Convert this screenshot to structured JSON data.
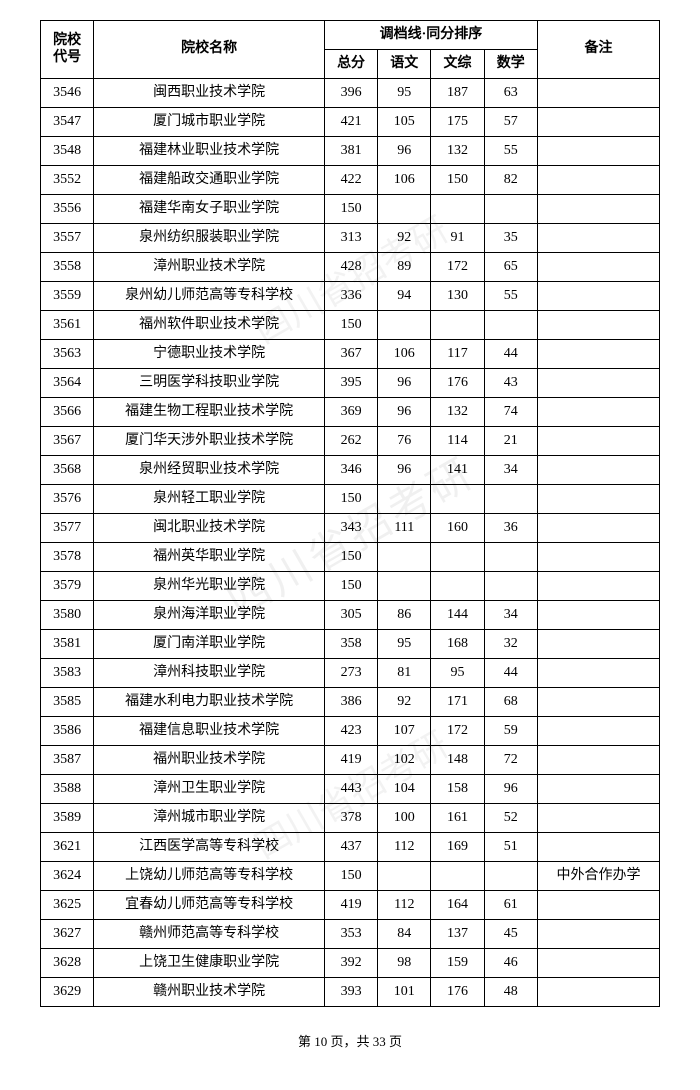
{
  "header": {
    "col_code": "院校\n代号",
    "col_name": "院校名称",
    "col_group": "调档线·同分排序",
    "col_total": "总分",
    "col_chinese": "语文",
    "col_liberal": "文综",
    "col_math": "数学",
    "col_remark": "备注"
  },
  "rows": [
    {
      "code": "3546",
      "name": "闽西职业技术学院",
      "total": "396",
      "chinese": "95",
      "liberal": "187",
      "math": "63",
      "remark": ""
    },
    {
      "code": "3547",
      "name": "厦门城市职业学院",
      "total": "421",
      "chinese": "105",
      "liberal": "175",
      "math": "57",
      "remark": ""
    },
    {
      "code": "3548",
      "name": "福建林业职业技术学院",
      "total": "381",
      "chinese": "96",
      "liberal": "132",
      "math": "55",
      "remark": ""
    },
    {
      "code": "3552",
      "name": "福建船政交通职业学院",
      "total": "422",
      "chinese": "106",
      "liberal": "150",
      "math": "82",
      "remark": ""
    },
    {
      "code": "3556",
      "name": "福建华南女子职业学院",
      "total": "150",
      "chinese": "",
      "liberal": "",
      "math": "",
      "remark": ""
    },
    {
      "code": "3557",
      "name": "泉州纺织服装职业学院",
      "total": "313",
      "chinese": "92",
      "liberal": "91",
      "math": "35",
      "remark": ""
    },
    {
      "code": "3558",
      "name": "漳州职业技术学院",
      "total": "428",
      "chinese": "89",
      "liberal": "172",
      "math": "65",
      "remark": ""
    },
    {
      "code": "3559",
      "name": "泉州幼儿师范高等专科学校",
      "total": "336",
      "chinese": "94",
      "liberal": "130",
      "math": "55",
      "remark": ""
    },
    {
      "code": "3561",
      "name": "福州软件职业技术学院",
      "total": "150",
      "chinese": "",
      "liberal": "",
      "math": "",
      "remark": ""
    },
    {
      "code": "3563",
      "name": "宁德职业技术学院",
      "total": "367",
      "chinese": "106",
      "liberal": "117",
      "math": "44",
      "remark": ""
    },
    {
      "code": "3564",
      "name": "三明医学科技职业学院",
      "total": "395",
      "chinese": "96",
      "liberal": "176",
      "math": "43",
      "remark": ""
    },
    {
      "code": "3566",
      "name": "福建生物工程职业技术学院",
      "total": "369",
      "chinese": "96",
      "liberal": "132",
      "math": "74",
      "remark": ""
    },
    {
      "code": "3567",
      "name": "厦门华天涉外职业技术学院",
      "total": "262",
      "chinese": "76",
      "liberal": "114",
      "math": "21",
      "remark": ""
    },
    {
      "code": "3568",
      "name": "泉州经贸职业技术学院",
      "total": "346",
      "chinese": "96",
      "liberal": "141",
      "math": "34",
      "remark": ""
    },
    {
      "code": "3576",
      "name": "泉州轻工职业学院",
      "total": "150",
      "chinese": "",
      "liberal": "",
      "math": "",
      "remark": ""
    },
    {
      "code": "3577",
      "name": "闽北职业技术学院",
      "total": "343",
      "chinese": "111",
      "liberal": "160",
      "math": "36",
      "remark": ""
    },
    {
      "code": "3578",
      "name": "福州英华职业学院",
      "total": "150",
      "chinese": "",
      "liberal": "",
      "math": "",
      "remark": ""
    },
    {
      "code": "3579",
      "name": "泉州华光职业学院",
      "total": "150",
      "chinese": "",
      "liberal": "",
      "math": "",
      "remark": ""
    },
    {
      "code": "3580",
      "name": "泉州海洋职业学院",
      "total": "305",
      "chinese": "86",
      "liberal": "144",
      "math": "34",
      "remark": ""
    },
    {
      "code": "3581",
      "name": "厦门南洋职业学院",
      "total": "358",
      "chinese": "95",
      "liberal": "168",
      "math": "32",
      "remark": ""
    },
    {
      "code": "3583",
      "name": "漳州科技职业学院",
      "total": "273",
      "chinese": "81",
      "liberal": "95",
      "math": "44",
      "remark": ""
    },
    {
      "code": "3585",
      "name": "福建水利电力职业技术学院",
      "total": "386",
      "chinese": "92",
      "liberal": "171",
      "math": "68",
      "remark": ""
    },
    {
      "code": "3586",
      "name": "福建信息职业技术学院",
      "total": "423",
      "chinese": "107",
      "liberal": "172",
      "math": "59",
      "remark": ""
    },
    {
      "code": "3587",
      "name": "福州职业技术学院",
      "total": "419",
      "chinese": "102",
      "liberal": "148",
      "math": "72",
      "remark": ""
    },
    {
      "code": "3588",
      "name": "漳州卫生职业学院",
      "total": "443",
      "chinese": "104",
      "liberal": "158",
      "math": "96",
      "remark": ""
    },
    {
      "code": "3589",
      "name": "漳州城市职业学院",
      "total": "378",
      "chinese": "100",
      "liberal": "161",
      "math": "52",
      "remark": ""
    },
    {
      "code": "3621",
      "name": "江西医学高等专科学校",
      "total": "437",
      "chinese": "112",
      "liberal": "169",
      "math": "51",
      "remark": ""
    },
    {
      "code": "3624",
      "name": "上饶幼儿师范高等专科学校",
      "total": "150",
      "chinese": "",
      "liberal": "",
      "math": "",
      "remark": "中外合作办学"
    },
    {
      "code": "3625",
      "name": "宜春幼儿师范高等专科学校",
      "total": "419",
      "chinese": "112",
      "liberal": "164",
      "math": "61",
      "remark": ""
    },
    {
      "code": "3627",
      "name": "赣州师范高等专科学校",
      "total": "353",
      "chinese": "84",
      "liberal": "137",
      "math": "45",
      "remark": ""
    },
    {
      "code": "3628",
      "name": "上饶卫生健康职业学院",
      "total": "392",
      "chinese": "98",
      "liberal": "159",
      "math": "46",
      "remark": ""
    },
    {
      "code": "3629",
      "name": "赣州职业技术学院",
      "total": "393",
      "chinese": "101",
      "liberal": "176",
      "math": "48",
      "remark": ""
    }
  ],
  "footer": {
    "text_prefix": "第 ",
    "page_current": "10",
    "text_mid": " 页，共 ",
    "page_total": "33",
    "text_suffix": " 页"
  },
  "watermark": "四川省招考研",
  "style": {
    "font_family": "SimSun",
    "font_size_cell": 14,
    "font_size_footer": 13,
    "border_color": "#000000",
    "background_color": "#ffffff",
    "text_color": "#000000",
    "watermark_color": "rgba(0,0,0,0.06)"
  }
}
